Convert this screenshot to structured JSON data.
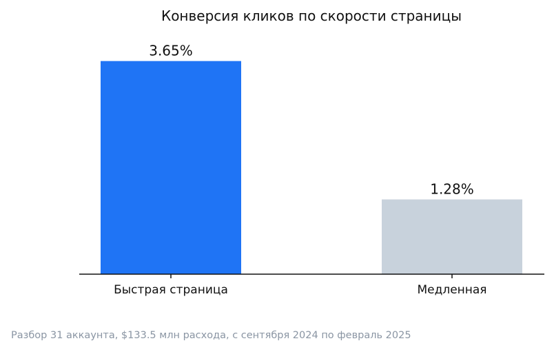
{
  "chart_data": {
    "type": "bar",
    "title": "Конверсия кликов по скорости страницы",
    "categories": [
      "Быстрая страница",
      "Медленная"
    ],
    "values": [
      3.65,
      1.28
    ],
    "value_labels": [
      "3.65%",
      "1.28%"
    ],
    "colors": [
      "#1f74f5",
      "#c8d2dc"
    ],
    "ylim": [
      0,
      4.2
    ],
    "xlabel": "",
    "ylabel": "",
    "grid": false,
    "legend": "none"
  },
  "footnote": "Разбор 31 аккаунта, $133.5 млн расхода, с сентября 2024 по февраль 2025"
}
